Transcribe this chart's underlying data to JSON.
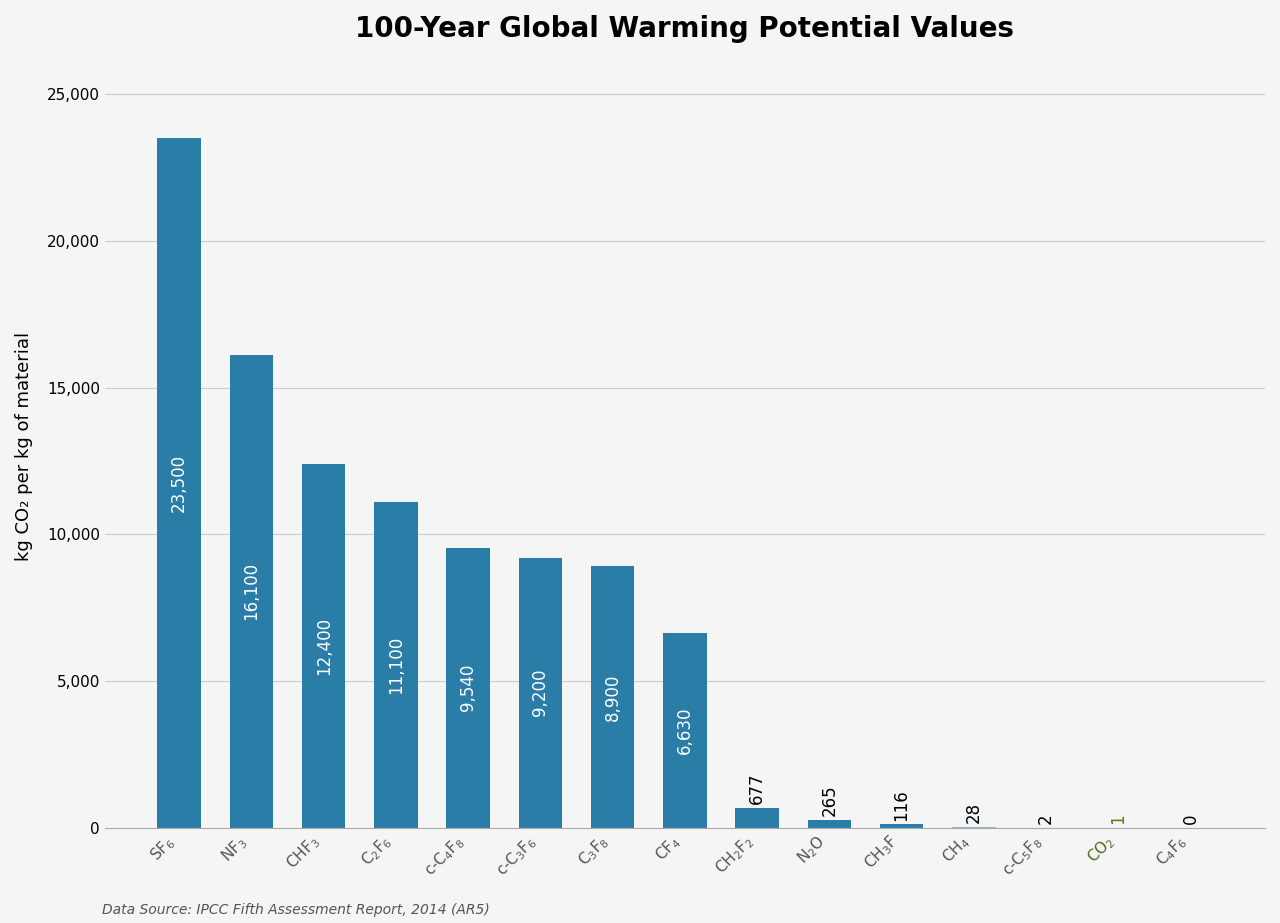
{
  "title": "100-Year Global Warming Potential Values",
  "ylabel": "kg CO₂ per kg of material",
  "source": "Data Source: IPCC Fifth Assessment Report, 2014 (AR5)",
  "categories": [
    "SF$_6$",
    "NF$_3$",
    "CHF$_3$",
    "C$_2$F$_6$",
    "c-C$_4$F$_8$",
    "c-C$_3$F$_6$",
    "C$_3$F$_8$",
    "CF$_4$",
    "CH$_2$F$_2$",
    "N$_2$O",
    "CH$_3$F",
    "CH$_4$",
    "c-C$_5$F$_8$",
    "CO$_2$",
    "C$_4$F$_6$"
  ],
  "categories_plain": [
    "SF_6",
    "NF_3",
    "CHF_3",
    "C_2F_6",
    "c-C_4F_8",
    "c-C_3F_6",
    "C_3F_8",
    "CF_4",
    "CH_2F_2",
    "N_2O",
    "CH_3F",
    "CH_4",
    "c-C_5F_8",
    "CO_2",
    "C_4F_6"
  ],
  "values": [
    23500,
    16100,
    12400,
    11100,
    9540,
    9200,
    8900,
    6630,
    677,
    265,
    116,
    28,
    2,
    1,
    0
  ],
  "bar_colors": [
    "#2a7da6",
    "#2a7da6",
    "#2a7da6",
    "#2a7da6",
    "#2a7da6",
    "#2a7da6",
    "#2a7da6",
    "#2a7da6",
    "#2a7da6",
    "#2a7da6",
    "#2a7da6",
    "#8fbfcf",
    "#8fbfcf",
    "#6b8f3a",
    "#8fbfcf"
  ],
  "label_colors": [
    "#000000",
    "#000000",
    "#000000",
    "#000000",
    "#000000",
    "#000000",
    "#000000",
    "#000000",
    "#000000",
    "#000000",
    "#000000",
    "#000000",
    "#000000",
    "#5a7a1a",
    "#000000"
  ],
  "xticklabel_colors": [
    "#555555",
    "#555555",
    "#555555",
    "#555555",
    "#555555",
    "#555555",
    "#555555",
    "#555555",
    "#555555",
    "#555555",
    "#555555",
    "#555555",
    "#555555",
    "#4a7020",
    "#555555"
  ],
  "ylim": [
    0,
    26000
  ],
  "yticks": [
    0,
    5000,
    10000,
    15000,
    20000,
    25000
  ],
  "background_color": "#f5f5f5",
  "grid_color": "#cccccc",
  "title_fontsize": 20,
  "label_fontsize": 12,
  "tick_fontsize": 11,
  "source_fontsize": 10
}
